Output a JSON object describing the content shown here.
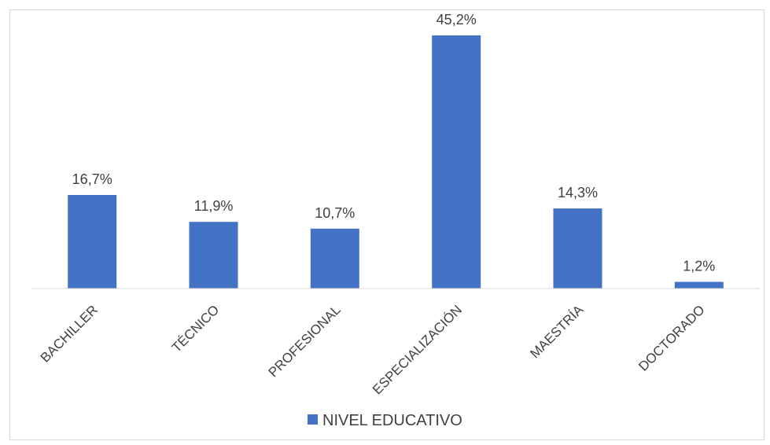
{
  "chart_data": {
    "type": "bar",
    "title": "",
    "xlabel": "",
    "ylabel": "",
    "categories": [
      "BACHILLER",
      "TÉCNICO",
      "PROFESIONAL",
      "ESPECIALIZACIÓN",
      "MAESTRÍA",
      "DOCTORADO"
    ],
    "series": [
      {
        "name": "NIVEL EDUCATIVO",
        "values": [
          16.7,
          11.9,
          10.7,
          45.2,
          14.3,
          1.2
        ],
        "labels": [
          "16,7%",
          "11,9%",
          "10,7%",
          "45,2%",
          "14,3%",
          "1,2%"
        ],
        "color": "#4472c4"
      }
    ],
    "ylim": [
      0,
      45.2
    ],
    "grid": false,
    "y_axis_visible": false,
    "legend_position": "bottom"
  }
}
